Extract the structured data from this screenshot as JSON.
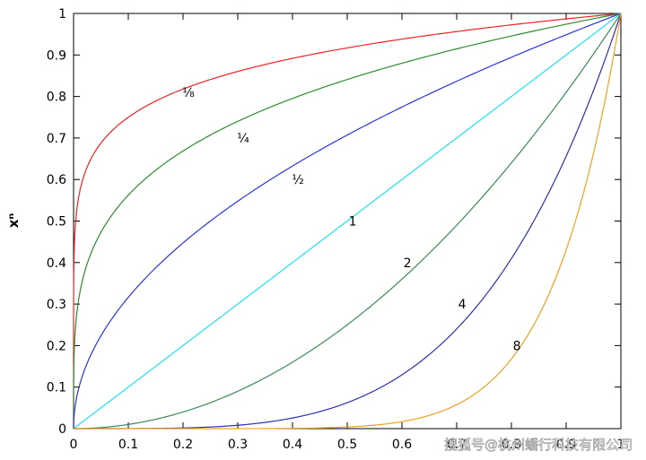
{
  "chart_data": {
    "type": "line",
    "title": "",
    "xlabel": "",
    "ylabel": "xⁿ",
    "xlim": [
      0,
      1
    ],
    "ylim": [
      0,
      1
    ],
    "x_ticks": [
      "0",
      "0.1",
      "0.2",
      "0.3",
      "0.4",
      "0.5",
      "0.6",
      "0.7",
      "0.8",
      "0.9",
      "1"
    ],
    "y_ticks": [
      "0",
      "0.1",
      "0.2",
      "0.3",
      "0.4",
      "0.5",
      "0.6",
      "0.7",
      "0.8",
      "0.9",
      "1"
    ],
    "grid": false,
    "legend": "none",
    "series": [
      {
        "label": "⅛",
        "exponent": 0.125,
        "color": "#ee2222",
        "label_at": [
          0.21,
          0.81
        ]
      },
      {
        "label": "¼",
        "exponent": 0.25,
        "color": "#2e8b2e",
        "label_at": [
          0.31,
          0.7
        ]
      },
      {
        "label": "½",
        "exponent": 0.5,
        "color": "#2a35d8",
        "label_at": [
          0.41,
          0.6
        ]
      },
      {
        "label": "1",
        "exponent": 1,
        "color": "#20e0f0",
        "label_at": [
          0.51,
          0.5
        ]
      },
      {
        "label": "2",
        "exponent": 2,
        "color": "#3a8a5a",
        "label_at": [
          0.61,
          0.4
        ]
      },
      {
        "label": "4",
        "exponent": 4,
        "color": "#3030a8",
        "label_at": [
          0.71,
          0.3
        ]
      },
      {
        "label": "8",
        "exponent": 8,
        "color": "#f0a020",
        "label_at": [
          0.81,
          0.2
        ]
      }
    ]
  },
  "watermark": "搜狐号@杭州蟠行科技有限公司"
}
